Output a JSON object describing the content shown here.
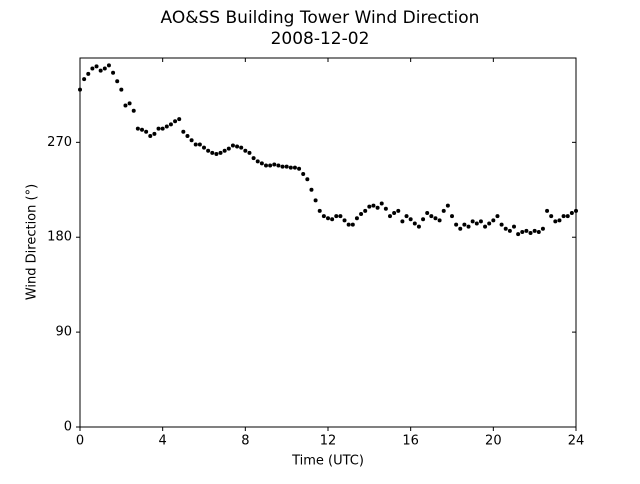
{
  "chart_data": {
    "type": "scatter",
    "title": "AO&SS Building Tower Wind Direction",
    "subtitle": "2008-12-02",
    "x_label": "Time (UTC)",
    "y_label": "Wind Direction (°)",
    "xlim": [
      0,
      24
    ],
    "xticks": [
      0,
      4,
      8,
      12,
      16,
      20,
      24
    ],
    "ylim": [
      0,
      350
    ],
    "yticks": [
      0,
      90,
      180,
      270
    ],
    "color": "#000000",
    "x": [
      0,
      0.2,
      0.4,
      0.6,
      0.8,
      1,
      1.2,
      1.4,
      1.6,
      1.8,
      2,
      2.2,
      2.4,
      2.6,
      2.8,
      3,
      3.2,
      3.4,
      3.6,
      3.8,
      4,
      4.2,
      4.4,
      4.6,
      4.8,
      5,
      5.2,
      5.4,
      5.6,
      5.8,
      6,
      6.2,
      6.4,
      6.6,
      6.8,
      7,
      7.2,
      7.4,
      7.6,
      7.8,
      8,
      8.2,
      8.4,
      8.6,
      8.8,
      9,
      9.2,
      9.4,
      9.6,
      9.8,
      10,
      10.2,
      10.4,
      10.6,
      10.8,
      11,
      11.2,
      11.4,
      11.6,
      11.8,
      12,
      12.2,
      12.4,
      12.6,
      12.8,
      13,
      13.2,
      13.4,
      13.6,
      13.8,
      14,
      14.2,
      14.4,
      14.6,
      14.8,
      15,
      15.2,
      15.4,
      15.6,
      15.8,
      16,
      16.2,
      16.4,
      16.6,
      16.8,
      17,
      17.2,
      17.4,
      17.6,
      17.8,
      18,
      18.2,
      18.4,
      18.6,
      18.8,
      19,
      19.2,
      19.4,
      19.6,
      19.8,
      20,
      20.2,
      20.4,
      20.6,
      20.8,
      21,
      21.2,
      21.4,
      21.6,
      21.8,
      22,
      22.2,
      22.4,
      22.6,
      22.8,
      23,
      23.2,
      23.4,
      23.6,
      23.8,
      24
    ],
    "values": [
      320,
      330,
      335,
      340,
      342,
      338,
      340,
      343,
      336,
      328,
      320,
      305,
      307,
      300,
      283,
      282,
      280,
      276,
      278,
      283,
      283,
      285,
      287,
      290,
      292,
      280,
      276,
      272,
      268,
      268,
      265,
      262,
      260,
      259,
      260,
      262,
      264,
      267,
      266,
      265,
      262,
      260,
      255,
      252,
      250,
      248,
      248,
      249,
      248,
      247,
      247,
      246,
      246,
      245,
      240,
      235,
      225,
      215,
      205,
      200,
      198,
      197,
      200,
      200,
      196,
      192,
      192,
      198,
      202,
      205,
      209,
      210,
      208,
      212,
      207,
      200,
      203,
      205,
      195,
      200,
      197,
      193,
      190,
      197,
      203,
      200,
      198,
      196,
      205,
      210,
      200,
      192,
      188,
      192,
      190,
      195,
      193,
      195,
      190,
      193,
      196,
      200,
      192,
      188,
      186,
      190,
      183,
      185,
      186,
      184,
      186,
      185,
      188,
      205,
      200,
      195,
      196,
      200,
      200,
      203,
      205
    ]
  }
}
